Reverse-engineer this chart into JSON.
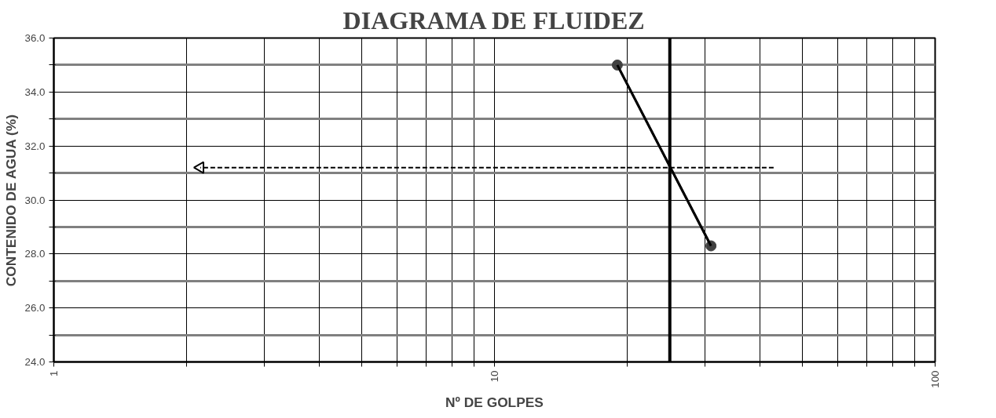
{
  "chart_data": {
    "type": "line",
    "title": "DIAGRAMA DE FLUIDEZ",
    "xlabel": "Nº DE GOLPES",
    "ylabel": "CONTENIDO DE AGUA (%)",
    "log": "x",
    "xlim": [
      1,
      100
    ],
    "ylim": [
      24,
      36
    ],
    "xticks": [
      1,
      {
        "value": 2,
        "label": null
      },
      {
        "value": 3,
        "label": null
      },
      {
        "value": 4,
        "label": null
      },
      {
        "value": 5,
        "label": null
      },
      {
        "value": 6,
        "label": null
      },
      {
        "value": 7,
        "label": null
      },
      {
        "value": 8,
        "label": null
      },
      {
        "value": 9,
        "label": null
      },
      10,
      {
        "value": 20,
        "label": null
      },
      {
        "value": 30,
        "label": null
      },
      {
        "value": 40,
        "label": null
      },
      {
        "value": 50,
        "label": null
      },
      {
        "value": 60,
        "label": null
      },
      {
        "value": 70,
        "label": null
      },
      {
        "value": 80,
        "label": null
      },
      {
        "value": 90,
        "label": null
      },
      100
    ],
    "yticks": [
      {
        "value": 24,
        "label": "24.0"
      },
      {
        "value": 25,
        "label": null
      },
      {
        "value": 26,
        "label": "26.0"
      },
      {
        "value": 27,
        "label": null
      },
      {
        "value": 28,
        "label": "28.0"
      },
      {
        "value": 29,
        "label": null
      },
      {
        "value": 30,
        "label": "30.0"
      },
      {
        "value": 31,
        "label": null
      },
      {
        "value": 32,
        "label": "32.0"
      },
      {
        "value": 33,
        "label": null
      },
      {
        "value": 34,
        "label": "34.0"
      },
      {
        "value": 35,
        "label": null
      },
      {
        "value": 36,
        "label": "36.0"
      }
    ],
    "grid": true,
    "series": [
      {
        "color": "#404040",
        "x": [
          19,
          31
        ],
        "values": [
          35.0,
          28.3
        ],
        "marker": "circle"
      },
      {
        "color": "#000000",
        "x": [
          19,
          31
        ],
        "values": [
          35.0,
          28.3
        ],
        "marker": "none"
      },
      {
        "color": "#000000",
        "x": [
          43,
          2.15
        ],
        "values": [
          31.2,
          31.2
        ],
        "marker": "triangle",
        "line_style": "dashed"
      }
    ],
    "ref_lines": [
      {
        "axis": "x",
        "value": 25,
        "label": null,
        "color": "#000000"
      }
    ]
  }
}
